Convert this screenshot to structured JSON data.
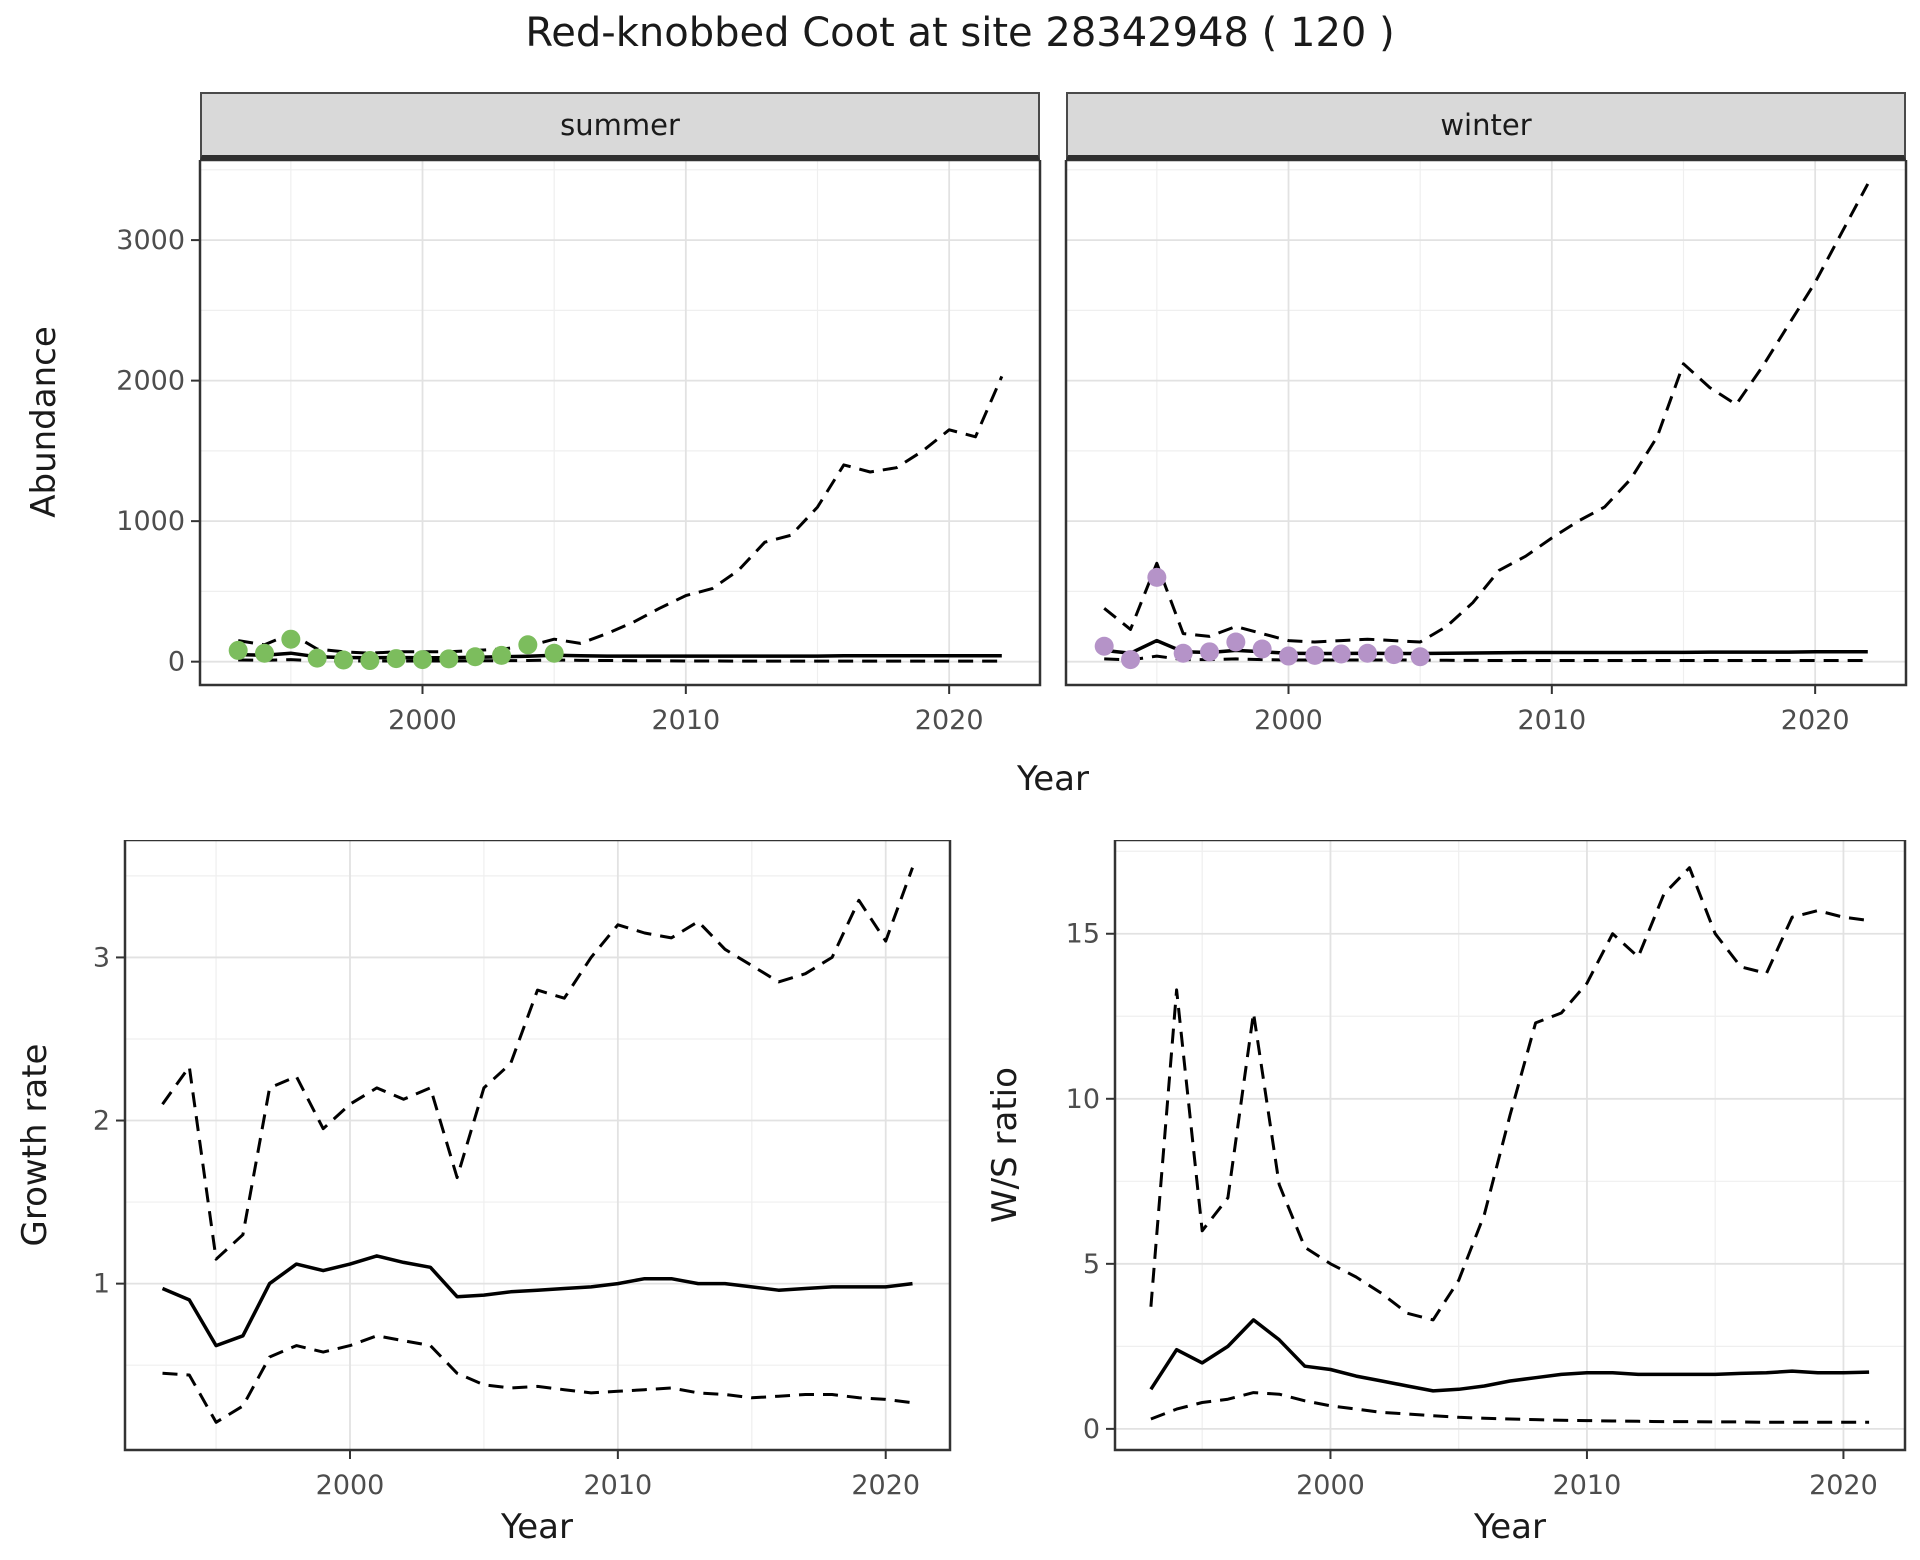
{
  "title": "Red-knobbed Coot at site 28342948 ( 120 )",
  "style": {
    "summer_point_color": "#7cbd5d",
    "winter_point_color": "#b593c8",
    "line_color": "#000000",
    "strip_background": "#d9d9d9",
    "panel_border": "#333333",
    "grid_major": "#e2e2e2",
    "grid_minor": "#efefef",
    "tick_text_color": "#4d4d4d"
  },
  "chart_data": [
    {
      "id": "abundance_summer",
      "type": "line",
      "facet_label": "summer",
      "xlabel": "Year",
      "ylabel": "Abundance",
      "xlim": [
        1991.55,
        2023.45
      ],
      "ylim": [
        -166,
        3570
      ],
      "xticks": [
        2000,
        2010,
        2020
      ],
      "yticks": [
        0,
        1000,
        2000,
        3000
      ],
      "grid": true,
      "legend": "none",
      "x": [
        1993,
        1994,
        1995,
        1996,
        1997,
        1998,
        1999,
        2000,
        2001,
        2002,
        2003,
        2004,
        2005,
        2006,
        2007,
        2008,
        2009,
        2010,
        2011,
        2012,
        2013,
        2014,
        2015,
        2016,
        2017,
        2018,
        2019,
        2020,
        2021,
        2022
      ],
      "series": [
        {
          "name": "upper_ci",
          "style": "dashed",
          "y": [
            150,
            120,
            200,
            90,
            70,
            60,
            70,
            70,
            70,
            80,
            90,
            110,
            160,
            130,
            200,
            280,
            380,
            470,
            520,
            650,
            850,
            900,
            1100,
            1400,
            1350,
            1380,
            1500,
            1650,
            1600,
            2030
          ]
        },
        {
          "name": "lower_ci",
          "style": "dashed",
          "y": [
            12,
            10,
            15,
            6,
            5,
            4,
            5,
            5,
            5,
            6,
            7,
            8,
            12,
            9,
            8,
            7,
            6,
            5,
            5,
            4,
            4,
            4,
            4,
            4,
            4,
            4,
            4,
            4,
            4,
            4
          ]
        },
        {
          "name": "median",
          "style": "solid",
          "y": [
            50,
            45,
            60,
            35,
            30,
            28,
            30,
            28,
            28,
            32,
            35,
            38,
            45,
            42,
            40,
            40,
            40,
            40,
            40,
            40,
            40,
            40,
            40,
            42,
            42,
            42,
            42,
            42,
            42,
            42
          ]
        },
        {
          "name": "observed_counts",
          "style": "points",
          "color": "#7cbd5d",
          "x": [
            1993,
            1994,
            1995,
            1996,
            1997,
            1998,
            1999,
            2000,
            2001,
            2002,
            2003,
            2004,
            2005
          ],
          "y": [
            80,
            60,
            160,
            25,
            12,
            8,
            22,
            15,
            20,
            35,
            45,
            120,
            60
          ]
        }
      ]
    },
    {
      "id": "abundance_winter",
      "type": "line",
      "facet_label": "winter",
      "xlabel": "Year",
      "ylabel": "Abundance",
      "xlim": [
        1991.55,
        2023.45
      ],
      "ylim": [
        -166,
        3570
      ],
      "xticks": [
        2000,
        2010,
        2020
      ],
      "yticks": [
        0,
        1000,
        2000,
        3000
      ],
      "grid": true,
      "legend": "none",
      "x": [
        1993,
        1994,
        1995,
        1996,
        1997,
        1998,
        1999,
        2000,
        2001,
        2002,
        2003,
        2004,
        2005,
        2006,
        2007,
        2008,
        2009,
        2010,
        2011,
        2012,
        2013,
        2014,
        2015,
        2016,
        2017,
        2018,
        2019,
        2020,
        2021,
        2022
      ],
      "series": [
        {
          "name": "upper_ci",
          "style": "dashed",
          "y": [
            380,
            230,
            700,
            200,
            180,
            250,
            200,
            150,
            140,
            150,
            160,
            150,
            140,
            250,
            420,
            650,
            750,
            880,
            1000,
            1100,
            1300,
            1600,
            2120,
            1950,
            1830,
            2100,
            2400,
            2700,
            3050,
            3400
          ]
        },
        {
          "name": "lower_ci",
          "style": "dashed",
          "y": [
            20,
            12,
            40,
            15,
            15,
            20,
            15,
            12,
            12,
            12,
            12,
            12,
            12,
            10,
            9,
            8,
            8,
            8,
            8,
            8,
            8,
            8,
            8,
            8,
            8,
            8,
            8,
            8,
            8,
            8
          ]
        },
        {
          "name": "median",
          "style": "solid",
          "y": [
            80,
            60,
            150,
            70,
            65,
            80,
            70,
            60,
            58,
            58,
            60,
            58,
            58,
            60,
            62,
            64,
            65,
            65,
            65,
            65,
            65,
            66,
            66,
            68,
            68,
            68,
            68,
            70,
            70,
            70
          ]
        },
        {
          "name": "observed_counts",
          "style": "points",
          "color": "#b593c8",
          "x": [
            1993,
            1994,
            1995,
            1996,
            1997,
            1998,
            1999,
            2000,
            2001,
            2002,
            2003,
            2004,
            2005
          ],
          "y": [
            110,
            15,
            600,
            60,
            70,
            140,
            90,
            40,
            45,
            55,
            60,
            50,
            35
          ]
        }
      ]
    },
    {
      "id": "growth_rate",
      "type": "line",
      "facet_label": "",
      "xlabel": "Year",
      "ylabel": "Growth rate",
      "xlim": [
        1991.6,
        2022.4
      ],
      "ylim": [
        -0.02,
        3.72
      ],
      "xticks": [
        2000,
        2010,
        2020
      ],
      "yticks": [
        1,
        2,
        3
      ],
      "grid": true,
      "legend": "none",
      "x": [
        1993,
        1994,
        1995,
        1996,
        1997,
        1998,
        1999,
        2000,
        2001,
        2002,
        2003,
        2004,
        2005,
        2006,
        2007,
        2008,
        2009,
        2010,
        2011,
        2012,
        2013,
        2014,
        2015,
        2016,
        2017,
        2018,
        2019,
        2020,
        2021
      ],
      "series": [
        {
          "name": "upper_ci",
          "style": "dashed",
          "y": [
            2.1,
            2.33,
            1.15,
            1.3,
            2.2,
            2.27,
            1.95,
            2.1,
            2.2,
            2.13,
            2.2,
            1.65,
            2.2,
            2.35,
            2.8,
            2.75,
            3.0,
            3.2,
            3.15,
            3.12,
            3.22,
            3.05,
            2.95,
            2.85,
            2.9,
            3.0,
            3.35,
            3.1,
            3.55
          ]
        },
        {
          "name": "lower_ci",
          "style": "dashed",
          "y": [
            0.45,
            0.44,
            0.15,
            0.25,
            0.55,
            0.62,
            0.58,
            0.62,
            0.68,
            0.65,
            0.62,
            0.45,
            0.38,
            0.36,
            0.37,
            0.35,
            0.33,
            0.34,
            0.35,
            0.36,
            0.33,
            0.32,
            0.3,
            0.31,
            0.32,
            0.32,
            0.3,
            0.29,
            0.27
          ]
        },
        {
          "name": "median",
          "style": "solid",
          "y": [
            0.97,
            0.9,
            0.62,
            0.68,
            1.0,
            1.12,
            1.08,
            1.12,
            1.17,
            1.13,
            1.1,
            0.92,
            0.93,
            0.95,
            0.96,
            0.97,
            0.98,
            1.0,
            1.03,
            1.03,
            1.0,
            1.0,
            0.98,
            0.96,
            0.97,
            0.98,
            0.98,
            0.98,
            1.0
          ]
        }
      ]
    },
    {
      "id": "ws_ratio",
      "type": "line",
      "facet_label": "",
      "xlabel": "Year",
      "ylabel": "W/S ratio",
      "xlim": [
        1991.6,
        2022.4
      ],
      "ylim": [
        -0.64,
        17.84
      ],
      "xticks": [
        2000,
        2010,
        2020
      ],
      "yticks": [
        0,
        5,
        10,
        15
      ],
      "grid": true,
      "legend": "none",
      "x": [
        1993,
        1994,
        1995,
        1996,
        1997,
        1998,
        1999,
        2000,
        2001,
        2002,
        2003,
        2004,
        2005,
        2006,
        2007,
        2008,
        2009,
        2010,
        2011,
        2012,
        2013,
        2014,
        2015,
        2016,
        2017,
        2018,
        2019,
        2020,
        2021
      ],
      "series": [
        {
          "name": "upper_ci",
          "style": "dashed",
          "y": [
            3.7,
            13.3,
            6.0,
            7.0,
            12.6,
            7.4,
            5.5,
            5.0,
            4.6,
            4.1,
            3.5,
            3.3,
            4.5,
            6.5,
            9.5,
            12.3,
            12.6,
            13.5,
            15.0,
            14.3,
            16.2,
            17.0,
            15.0,
            14.0,
            13.8,
            15.5,
            15.7,
            15.5,
            15.4
          ]
        },
        {
          "name": "lower_ci",
          "style": "dashed",
          "y": [
            0.3,
            0.6,
            0.8,
            0.9,
            1.1,
            1.05,
            0.85,
            0.7,
            0.6,
            0.5,
            0.45,
            0.4,
            0.35,
            0.32,
            0.3,
            0.28,
            0.26,
            0.25,
            0.24,
            0.23,
            0.22,
            0.22,
            0.21,
            0.21,
            0.2,
            0.2,
            0.2,
            0.2,
            0.2
          ]
        },
        {
          "name": "median",
          "style": "solid",
          "y": [
            1.2,
            2.4,
            2.0,
            2.5,
            3.3,
            2.7,
            1.9,
            1.8,
            1.6,
            1.45,
            1.3,
            1.15,
            1.2,
            1.3,
            1.45,
            1.55,
            1.65,
            1.7,
            1.7,
            1.65,
            1.65,
            1.65,
            1.65,
            1.68,
            1.7,
            1.75,
            1.7,
            1.7,
            1.72
          ]
        }
      ]
    }
  ]
}
